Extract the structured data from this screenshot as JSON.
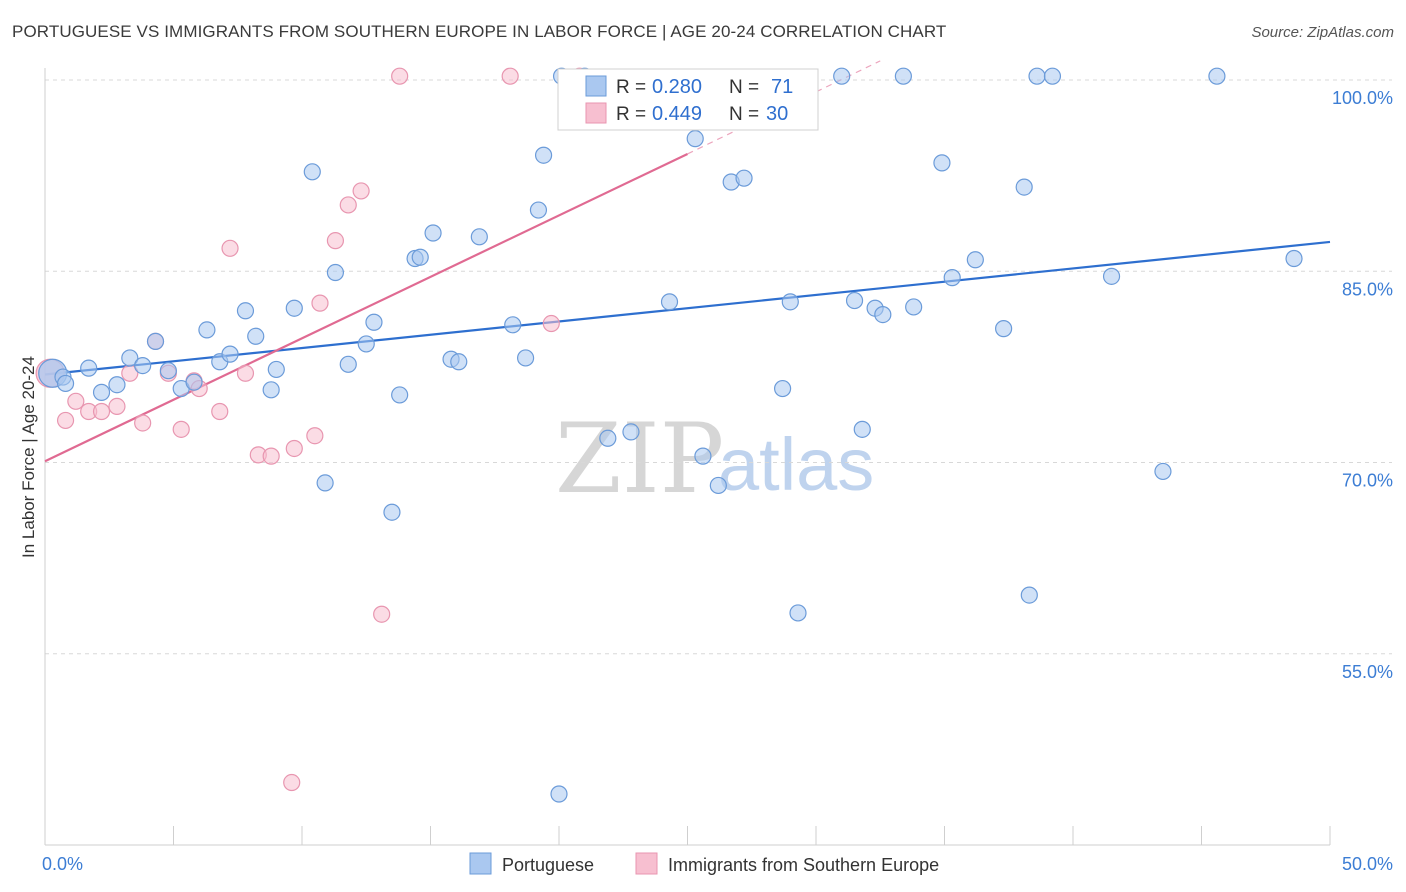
{
  "title": "PORTUGUESE VS IMMIGRANTS FROM SOUTHERN EUROPE IN LABOR FORCE | AGE 20-24 CORRELATION CHART",
  "source": "Source: ZipAtlas.com",
  "watermark": {
    "zip": "ZIP",
    "atlas": "atlas"
  },
  "colors": {
    "blue_fill": "#aac8f0",
    "blue_stroke": "#6b9bd9",
    "blue_line": "#2e6fcf",
    "pink_fill": "#f7bfd0",
    "pink_stroke": "#e896b0",
    "pink_line": "#e06a92",
    "grid": "#d8d8d8",
    "tick_text": "#3c7dd4"
  },
  "legend_box": {
    "rows": [
      {
        "r_label": "R =",
        "r_value": "0.280",
        "n_label": "N =",
        "n_value": "71",
        "series": "Portuguese"
      },
      {
        "r_label": "R =",
        "r_value": "0.449",
        "n_label": "N =",
        "n_value": "30",
        "series": "Immigrants from Southern Europe"
      }
    ]
  },
  "chart_data": {
    "type": "scatter",
    "title": "PORTUGUESE VS IMMIGRANTS FROM SOUTHERN EUROPE IN LABOR FORCE | AGE 20-24 CORRELATION CHART",
    "xlabel": "",
    "ylabel": "In Labor Force | Age 20-24",
    "xlim": [
      0,
      50
    ],
    "ylim": [
      40,
      101.5
    ],
    "x_tick_labels": [
      "0.0%",
      "50.0%"
    ],
    "y_ticks": [
      55,
      70,
      85,
      100
    ],
    "y_tick_labels": [
      "55.0%",
      "70.0%",
      "85.0%",
      "100.0%"
    ],
    "legend": [
      "Portuguese",
      "Immigrants from Southern Europe"
    ],
    "series": [
      {
        "name": "Portuguese",
        "r": 0.28,
        "n": 71,
        "trend": {
          "x0": 0,
          "y0": 76.9,
          "x1": 50,
          "y1": 87.3,
          "dashed_from_x": null
        },
        "points": [
          [
            0.3,
            77.0
          ],
          [
            0.7,
            76.7
          ],
          [
            0.8,
            76.2
          ],
          [
            1.7,
            77.4
          ],
          [
            2.2,
            75.5
          ],
          [
            2.8,
            76.1
          ],
          [
            3.3,
            78.2
          ],
          [
            3.8,
            77.6
          ],
          [
            4.3,
            79.5
          ],
          [
            4.8,
            77.2
          ],
          [
            5.3,
            75.8
          ],
          [
            5.8,
            76.3
          ],
          [
            6.3,
            80.4
          ],
          [
            6.8,
            77.9
          ],
          [
            7.2,
            78.5
          ],
          [
            7.8,
            81.9
          ],
          [
            8.2,
            79.9
          ],
          [
            8.8,
            75.7
          ],
          [
            9.0,
            77.3
          ],
          [
            9.7,
            82.1
          ],
          [
            10.4,
            92.8
          ],
          [
            10.9,
            68.4
          ],
          [
            11.3,
            84.9
          ],
          [
            11.8,
            77.7
          ],
          [
            12.5,
            79.3
          ],
          [
            12.8,
            81.0
          ],
          [
            13.5,
            66.1
          ],
          [
            13.8,
            75.3
          ],
          [
            14.4,
            86.0
          ],
          [
            14.6,
            86.1
          ],
          [
            15.1,
            88.0
          ],
          [
            15.8,
            78.1
          ],
          [
            16.1,
            77.9
          ],
          [
            16.9,
            87.7
          ],
          [
            18.2,
            80.8
          ],
          [
            18.7,
            78.2
          ],
          [
            19.2,
            89.8
          ],
          [
            19.4,
            94.1
          ],
          [
            20.0,
            44.0
          ],
          [
            20.1,
            100.3
          ],
          [
            21.0,
            100.3
          ],
          [
            21.9,
            71.9
          ],
          [
            22.8,
            72.4
          ],
          [
            24.3,
            82.6
          ],
          [
            25.3,
            95.4
          ],
          [
            25.6,
            70.5
          ],
          [
            26.2,
            68.2
          ],
          [
            26.7,
            92.0
          ],
          [
            27.2,
            92.3
          ],
          [
            28.7,
            75.8
          ],
          [
            29.0,
            82.6
          ],
          [
            29.3,
            58.2
          ],
          [
            31.0,
            100.3
          ],
          [
            31.5,
            82.7
          ],
          [
            31.8,
            72.6
          ],
          [
            32.3,
            82.1
          ],
          [
            32.6,
            81.6
          ],
          [
            33.4,
            100.3
          ],
          [
            33.8,
            82.2
          ],
          [
            34.9,
            93.5
          ],
          [
            35.3,
            84.5
          ],
          [
            36.2,
            85.9
          ],
          [
            37.3,
            80.5
          ],
          [
            38.1,
            91.6
          ],
          [
            38.3,
            59.6
          ],
          [
            38.6,
            100.3
          ],
          [
            39.2,
            100.3
          ],
          [
            41.5,
            84.6
          ],
          [
            43.5,
            69.3
          ],
          [
            45.6,
            100.3
          ],
          [
            48.6,
            86.0
          ]
        ]
      },
      {
        "name": "Immigrants from Southern Europe",
        "r": 0.449,
        "n": 30,
        "trend": {
          "x0": 0,
          "y0": 70.1,
          "x1": 25.0,
          "y1": 94.2,
          "dashed_from_x": 25.0,
          "dashed_x1": 32.5,
          "dashed_y1": 101.5
        },
        "points": [
          [
            0.2,
            77.0
          ],
          [
            0.8,
            73.3
          ],
          [
            1.2,
            74.8
          ],
          [
            1.7,
            74.0
          ],
          [
            2.2,
            74.0
          ],
          [
            2.8,
            74.4
          ],
          [
            3.3,
            77.0
          ],
          [
            3.8,
            73.1
          ],
          [
            4.3,
            79.5
          ],
          [
            4.8,
            77.0
          ],
          [
            5.3,
            72.6
          ],
          [
            5.8,
            76.4
          ],
          [
            6.0,
            75.8
          ],
          [
            6.8,
            74.0
          ],
          [
            7.2,
            86.8
          ],
          [
            7.8,
            77.0
          ],
          [
            8.3,
            70.6
          ],
          [
            8.8,
            70.5
          ],
          [
            9.6,
            44.9
          ],
          [
            9.7,
            71.1
          ],
          [
            10.5,
            72.1
          ],
          [
            10.7,
            82.5
          ],
          [
            11.3,
            87.4
          ],
          [
            11.8,
            90.2
          ],
          [
            12.3,
            91.3
          ],
          [
            13.1,
            58.1
          ],
          [
            13.8,
            100.3
          ],
          [
            18.1,
            100.3
          ],
          [
            19.7,
            80.9
          ],
          [
            20.8,
            100.3
          ]
        ]
      }
    ]
  }
}
